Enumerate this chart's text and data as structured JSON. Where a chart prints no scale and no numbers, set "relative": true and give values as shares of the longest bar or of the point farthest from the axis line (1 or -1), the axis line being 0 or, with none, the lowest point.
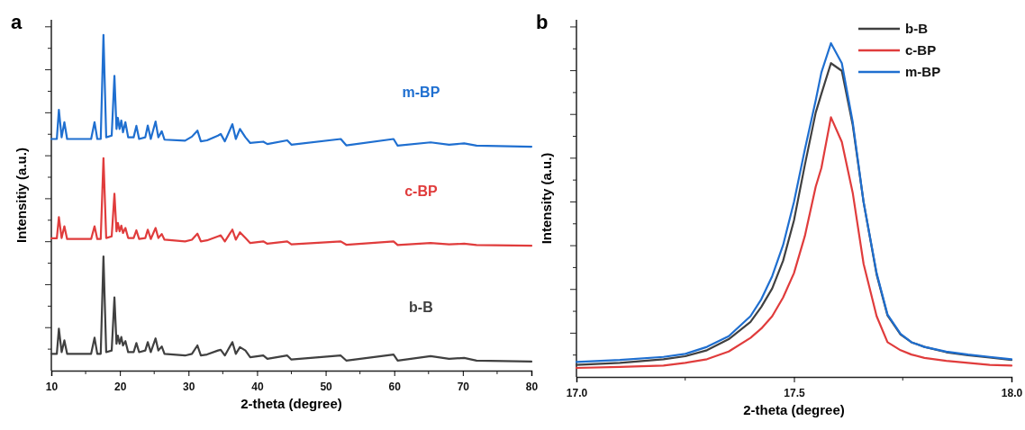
{
  "chart_data": [
    {
      "type": "line",
      "xlabel": "2-theta (degree)",
      "ylabel": "Intensitiy (a.u.)",
      "annotations": [
        "a"
      ],
      "relative": true,
      "xlim": [
        10,
        80
      ],
      "xticks": [
        10,
        20,
        30,
        40,
        50,
        60,
        70,
        80
      ],
      "tick_labels": "x",
      "legend": false,
      "series": [
        {
          "name": "b-B",
          "color": "#404040",
          "x": [
            10,
            10.8,
            11.1,
            11.5,
            11.9,
            12.3,
            15.8,
            16.3,
            16.7,
            17.2,
            17.6,
            18.0,
            18.8,
            19.2,
            19.5,
            19.7,
            19.95,
            20.2,
            20.45,
            20.8,
            21.2,
            22.0,
            22.4,
            22.8,
            23.7,
            24.06,
            24.5,
            25.2,
            25.6,
            26.1,
            26.5,
            29.5,
            30.5,
            31.3,
            31.8,
            32.7,
            34.3,
            34.7,
            35.3,
            36.4,
            36.9,
            37.5,
            38.3,
            39,
            40.9,
            41.5,
            44.4,
            45,
            52.2,
            53,
            59.9,
            60.5,
            65.3,
            68,
            70.2,
            72,
            80
          ],
          "values": [
            0.05,
            0.05,
            0.125,
            0.055,
            0.09,
            0.05,
            0.05,
            0.098,
            0.05,
            0.05,
            0.34,
            0.055,
            0.06,
            0.218,
            0.08,
            0.104,
            0.08,
            0.1,
            0.075,
            0.088,
            0.055,
            0.055,
            0.082,
            0.055,
            0.06,
            0.085,
            0.055,
            0.096,
            0.06,
            0.072,
            0.05,
            0.045,
            0.05,
            0.075,
            0.045,
            0.048,
            0.06,
            0.062,
            0.045,
            0.085,
            0.05,
            0.07,
            0.06,
            0.04,
            0.045,
            0.035,
            0.045,
            0.033,
            0.045,
            0.03,
            0.048,
            0.03,
            0.043,
            0.035,
            0.038,
            0.03,
            0.027
          ]
        },
        {
          "name": "c-BP",
          "color": "#e03c3c",
          "x": [
            10,
            10.8,
            11.1,
            11.5,
            11.9,
            12.3,
            15.8,
            16.3,
            16.7,
            17.2,
            17.6,
            18.0,
            18.8,
            19.2,
            19.5,
            19.7,
            19.95,
            20.2,
            20.45,
            20.8,
            21.2,
            22.0,
            22.4,
            22.8,
            23.7,
            24.06,
            24.5,
            25.2,
            25.6,
            26.1,
            26.5,
            29.5,
            30.5,
            31.3,
            31.8,
            32.7,
            34.3,
            34.7,
            35.3,
            36.4,
            36.9,
            37.5,
            38.3,
            39,
            40.9,
            41.5,
            44.4,
            45,
            52.2,
            53,
            59.9,
            60.5,
            65.3,
            68,
            70.2,
            72,
            80
          ],
          "values": [
            0.394,
            0.394,
            0.457,
            0.395,
            0.43,
            0.392,
            0.392,
            0.43,
            0.392,
            0.392,
            0.633,
            0.395,
            0.4,
            0.527,
            0.415,
            0.44,
            0.415,
            0.432,
            0.41,
            0.425,
            0.395,
            0.395,
            0.418,
            0.392,
            0.395,
            0.42,
            0.392,
            0.425,
            0.395,
            0.407,
            0.39,
            0.385,
            0.39,
            0.408,
            0.385,
            0.388,
            0.4,
            0.403,
            0.385,
            0.42,
            0.39,
            0.412,
            0.395,
            0.38,
            0.385,
            0.378,
            0.385,
            0.376,
            0.385,
            0.375,
            0.385,
            0.374,
            0.38,
            0.376,
            0.378,
            0.374,
            0.372
          ]
        },
        {
          "name": "m-BP",
          "color": "#1f6fd0",
          "x": [
            10,
            10.8,
            11.1,
            11.5,
            11.9,
            12.3,
            15.8,
            16.3,
            16.7,
            17.2,
            17.6,
            18.0,
            18.8,
            19.2,
            19.5,
            19.7,
            19.95,
            20.2,
            20.45,
            20.8,
            21.2,
            22.0,
            22.4,
            22.8,
            23.7,
            24.06,
            24.5,
            25.2,
            25.6,
            26.1,
            26.5,
            29.5,
            30.5,
            31.3,
            31.8,
            32.7,
            34.3,
            34.7,
            35.3,
            36.4,
            36.9,
            37.5,
            38.3,
            39,
            40.9,
            41.5,
            44.4,
            45,
            52.2,
            53,
            59.9,
            60.5,
            65.3,
            68,
            70.2,
            72,
            80
          ],
          "values": [
            0.69,
            0.69,
            0.777,
            0.695,
            0.74,
            0.69,
            0.69,
            0.74,
            0.69,
            0.69,
            1.0,
            0.695,
            0.7,
            0.878,
            0.72,
            0.753,
            0.72,
            0.745,
            0.71,
            0.74,
            0.695,
            0.695,
            0.729,
            0.69,
            0.695,
            0.73,
            0.69,
            0.742,
            0.695,
            0.713,
            0.688,
            0.685,
            0.697,
            0.715,
            0.683,
            0.686,
            0.7,
            0.705,
            0.683,
            0.734,
            0.69,
            0.72,
            0.695,
            0.678,
            0.682,
            0.675,
            0.686,
            0.673,
            0.69,
            0.671,
            0.69,
            0.67,
            0.68,
            0.673,
            0.677,
            0.67,
            0.667
          ]
        }
      ]
    },
    {
      "type": "line",
      "xlabel": "2-theta (degree)",
      "ylabel": "Intensity (a.u.)",
      "annotations": [
        "b"
      ],
      "relative": true,
      "xlim": [
        17.0,
        18.0
      ],
      "xticks": [
        {
          "value": 17.0,
          "label": "17.0"
        },
        {
          "value": 17.5,
          "label": "17.5"
        },
        {
          "value": 18.0,
          "label": "18.0"
        }
      ],
      "tick_labels": "x",
      "legend": "top right",
      "x": [
        17.0,
        17.1,
        17.2,
        17.25,
        17.3,
        17.35,
        17.4,
        17.425,
        17.45,
        17.475,
        17.5,
        17.525,
        17.55,
        17.563,
        17.585,
        17.61,
        17.635,
        17.66,
        17.69,
        17.715,
        17.745,
        17.77,
        17.8,
        17.85,
        17.9,
        17.95,
        18.0
      ],
      "series": [
        {
          "name": "b-B",
          "color": "#404040",
          "values": [
            0.036,
            0.042,
            0.053,
            0.062,
            0.08,
            0.113,
            0.165,
            0.21,
            0.265,
            0.348,
            0.469,
            0.635,
            0.792,
            0.848,
            0.94,
            0.917,
            0.755,
            0.524,
            0.307,
            0.184,
            0.127,
            0.104,
            0.09,
            0.074,
            0.065,
            0.058,
            0.051
          ]
        },
        {
          "name": "c-BP",
          "color": "#e03c3c",
          "values": [
            0.027,
            0.03,
            0.034,
            0.042,
            0.053,
            0.076,
            0.117,
            0.145,
            0.182,
            0.238,
            0.311,
            0.422,
            0.57,
            0.626,
            0.778,
            0.704,
            0.552,
            0.339,
            0.182,
            0.104,
            0.08,
            0.067,
            0.057,
            0.048,
            0.042,
            0.036,
            0.034
          ]
        },
        {
          "name": "m-BP",
          "color": "#1f6fd0",
          "values": [
            0.045,
            0.051,
            0.06,
            0.069,
            0.09,
            0.122,
            0.182,
            0.233,
            0.302,
            0.395,
            0.524,
            0.681,
            0.829,
            0.912,
            1.0,
            0.94,
            0.764,
            0.524,
            0.311,
            0.187,
            0.129,
            0.104,
            0.09,
            0.076,
            0.067,
            0.06,
            0.053
          ]
        }
      ]
    }
  ]
}
